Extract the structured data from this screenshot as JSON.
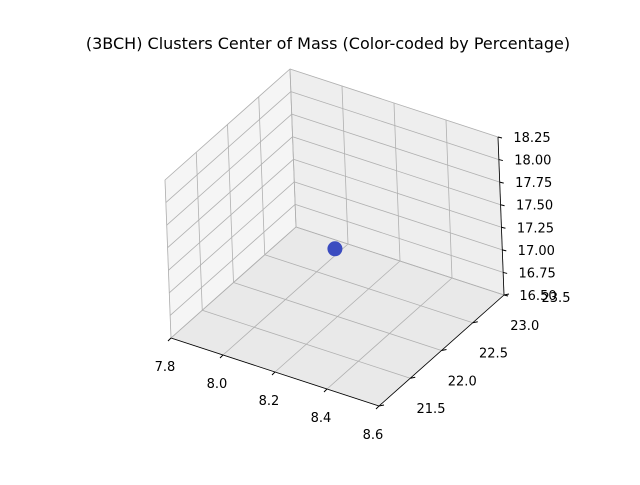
{
  "chart_data": {
    "type": "scatter",
    "projection": "3d",
    "title": "(3BCH) Clusters Center of Mass (Color-coded by Percentage)",
    "xlabel": "",
    "ylabel": "",
    "zlabel": "",
    "xlim": [
      7.8,
      8.6
    ],
    "ylim": [
      21.5,
      23.5
    ],
    "zlim": [
      16.5,
      18.25
    ],
    "x_ticks": [
      "7.8",
      "8.0",
      "8.2",
      "8.4",
      "8.6"
    ],
    "y_ticks": [
      "21.5",
      "22.0",
      "22.5",
      "23.0",
      "23.5"
    ],
    "z_ticks": [
      "16.50",
      "16.75",
      "17.00",
      "17.25",
      "17.50",
      "17.75",
      "18.00",
      "18.25"
    ],
    "grid": true,
    "points": [
      {
        "x": 8.2,
        "y": 22.5,
        "z": 17.25,
        "color": "#3b4cc0"
      }
    ]
  }
}
